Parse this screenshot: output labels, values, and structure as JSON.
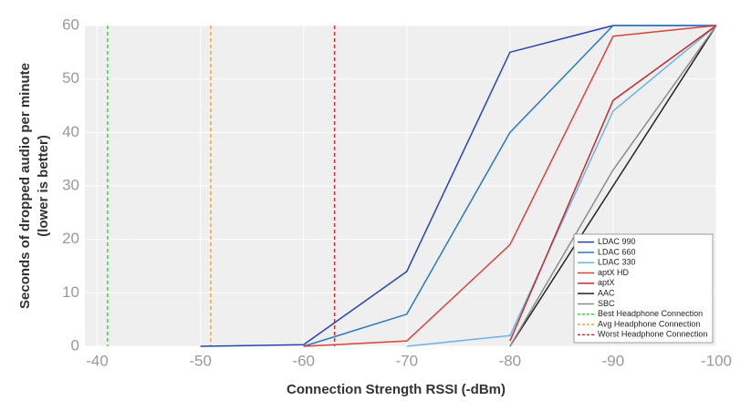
{
  "chart_data": {
    "type": "line",
    "xlabel": "Connection Strength RSSI (-dBm)",
    "ylabel": [
      "Seconds of dropped audio per minute",
      "(lower is better)"
    ],
    "x": [
      -50,
      -60,
      -70,
      -80,
      -90,
      -100
    ],
    "series": [
      {
        "name": "LDAC 990",
        "color": "#2743b3",
        "values": [
          0,
          0.3,
          14,
          55,
          60,
          60
        ]
      },
      {
        "name": "LDAC 660",
        "color": "#2b78be",
        "values": [
          null,
          0,
          6,
          40,
          60,
          60
        ]
      },
      {
        "name": "LDAC 330",
        "color": "#6cb6e6",
        "values": [
          null,
          null,
          0,
          2,
          44,
          60
        ]
      },
      {
        "name": "aptX HD",
        "color": "#d6453a",
        "values": [
          null,
          0,
          1,
          19,
          58,
          60
        ]
      },
      {
        "name": "aptX",
        "color": "#c42a2a",
        "values": [
          null,
          null,
          null,
          1,
          46,
          60
        ]
      },
      {
        "name": "AAC",
        "color": "#222222",
        "values": [
          null,
          null,
          null,
          0,
          30,
          60
        ]
      },
      {
        "name": "SBC",
        "color": "#8c8c8c",
        "values": [
          null,
          null,
          null,
          0,
          33,
          60
        ]
      }
    ],
    "reference_lines": [
      {
        "name": "Best Headphone Connection",
        "color": "#33dd33",
        "value": -41
      },
      {
        "name": "Avg Headphone Connection",
        "color": "#e8a83a",
        "value": -51
      },
      {
        "name": "Worst Headphone Connection",
        "color": "#d92b2b",
        "value": -63
      }
    ],
    "xlim": [
      -38.8,
      -100
    ],
    "xticks": [
      -40,
      -50,
      -60,
      -70,
      -80,
      -90,
      -100
    ],
    "ylim": [
      0,
      60
    ],
    "yticks": [
      0,
      10,
      20,
      30,
      40,
      50,
      60
    ],
    "grid": true,
    "legend": "lower right"
  }
}
